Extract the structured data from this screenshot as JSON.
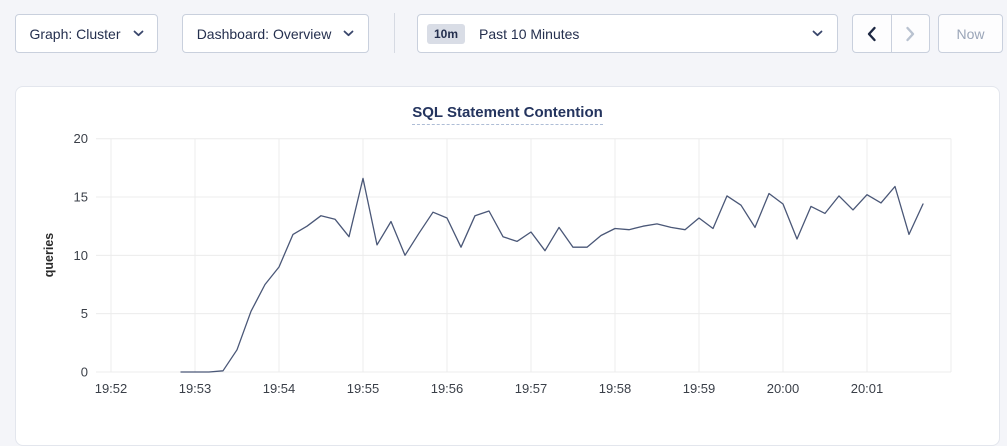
{
  "toolbar": {
    "graph_dropdown_label": "Graph: Cluster",
    "dashboard_dropdown_label": "Dashboard: Overview",
    "time_picker": {
      "badge": "10m",
      "label": "Past 10 Minutes"
    },
    "now_button_label": "Now"
  },
  "colors": {
    "line": "#4a5777",
    "grid": "#ececec",
    "title": "#24345e",
    "toolbar_text": "#242f4e",
    "disabled_text": "#9aa5b8",
    "page_background": "#f4f5f9"
  },
  "chart_data": {
    "type": "line",
    "title": "SQL Statement Contention",
    "xlabel": "",
    "ylabel": "queries",
    "ylim": [
      0,
      20
    ],
    "y_ticks": [
      0,
      5,
      10,
      15,
      20
    ],
    "x_tick_labels": [
      "19:52",
      "19:53",
      "19:54",
      "19:55",
      "19:56",
      "19:57",
      "19:58",
      "19:59",
      "20:00",
      "20:01"
    ],
    "x_gridline_count": 11,
    "grid": true,
    "legend_position": "none",
    "series": [
      {
        "name": "queries",
        "start_offset_seconds": 50,
        "step_seconds": 10,
        "values": [
          0,
          0,
          0,
          0.1,
          1.9,
          5.2,
          7.5,
          9.0,
          11.8,
          12.5,
          13.4,
          13.1,
          11.6,
          16.6,
          10.9,
          12.9,
          10,
          11.9,
          13.7,
          13.2,
          10.7,
          13.4,
          13.8,
          11.6,
          11.2,
          12,
          10.4,
          12.4,
          10.7,
          10.7,
          11.7,
          12.3,
          12.2,
          12.5,
          12.7,
          12.4,
          12.2,
          13.2,
          12.3,
          15.1,
          14.3,
          12.4,
          15.3,
          14.4,
          11.4,
          14.2,
          13.6,
          15.1,
          13.9,
          15.2,
          14.5,
          15.9,
          11.8,
          14.4
        ]
      }
    ]
  }
}
